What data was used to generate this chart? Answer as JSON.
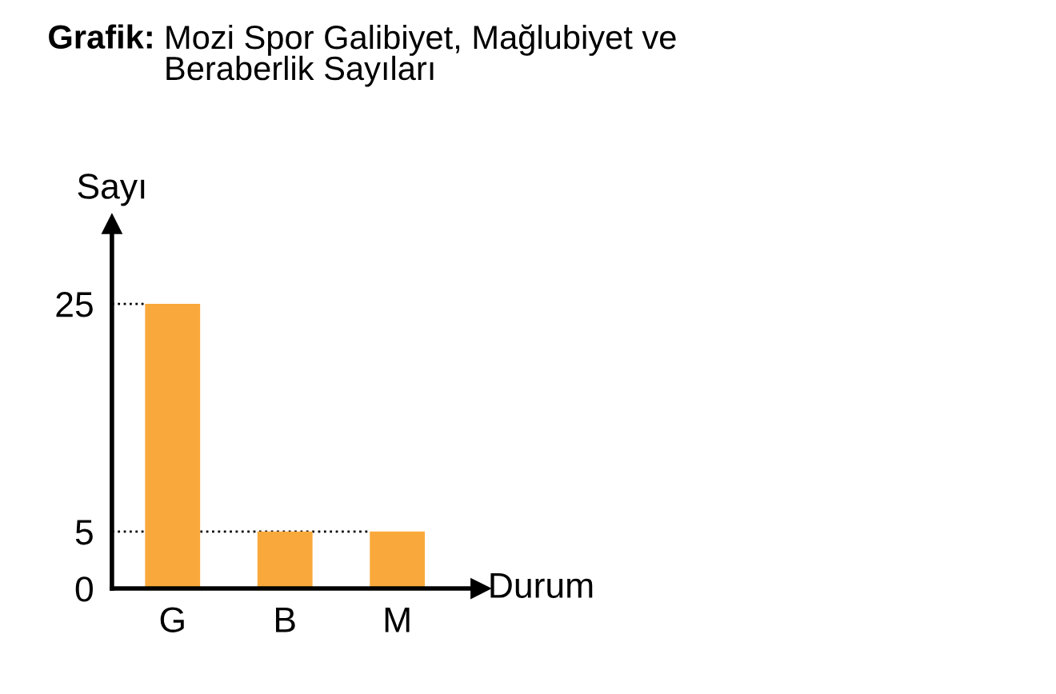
{
  "chart_data": {
    "type": "bar",
    "title": "Grafik: Mozi Spor Galibiyet, Mağlubiyet ve Beraberlik Sayıları",
    "xlabel": "Durum",
    "ylabel": "Sayı",
    "categories": [
      "G",
      "B",
      "M"
    ],
    "values": [
      25,
      5,
      5
    ],
    "color": "#f9a93b",
    "ylim": [
      0,
      32
    ],
    "yticks": [
      0,
      5,
      25
    ],
    "grid": false,
    "ref_lines": [
      {
        "axis": "y",
        "value": 25,
        "line_style": "dotted",
        "color": "#000000"
      },
      {
        "axis": "y",
        "value": 5,
        "line_style": "dotted",
        "color": "#000000"
      }
    ]
  }
}
